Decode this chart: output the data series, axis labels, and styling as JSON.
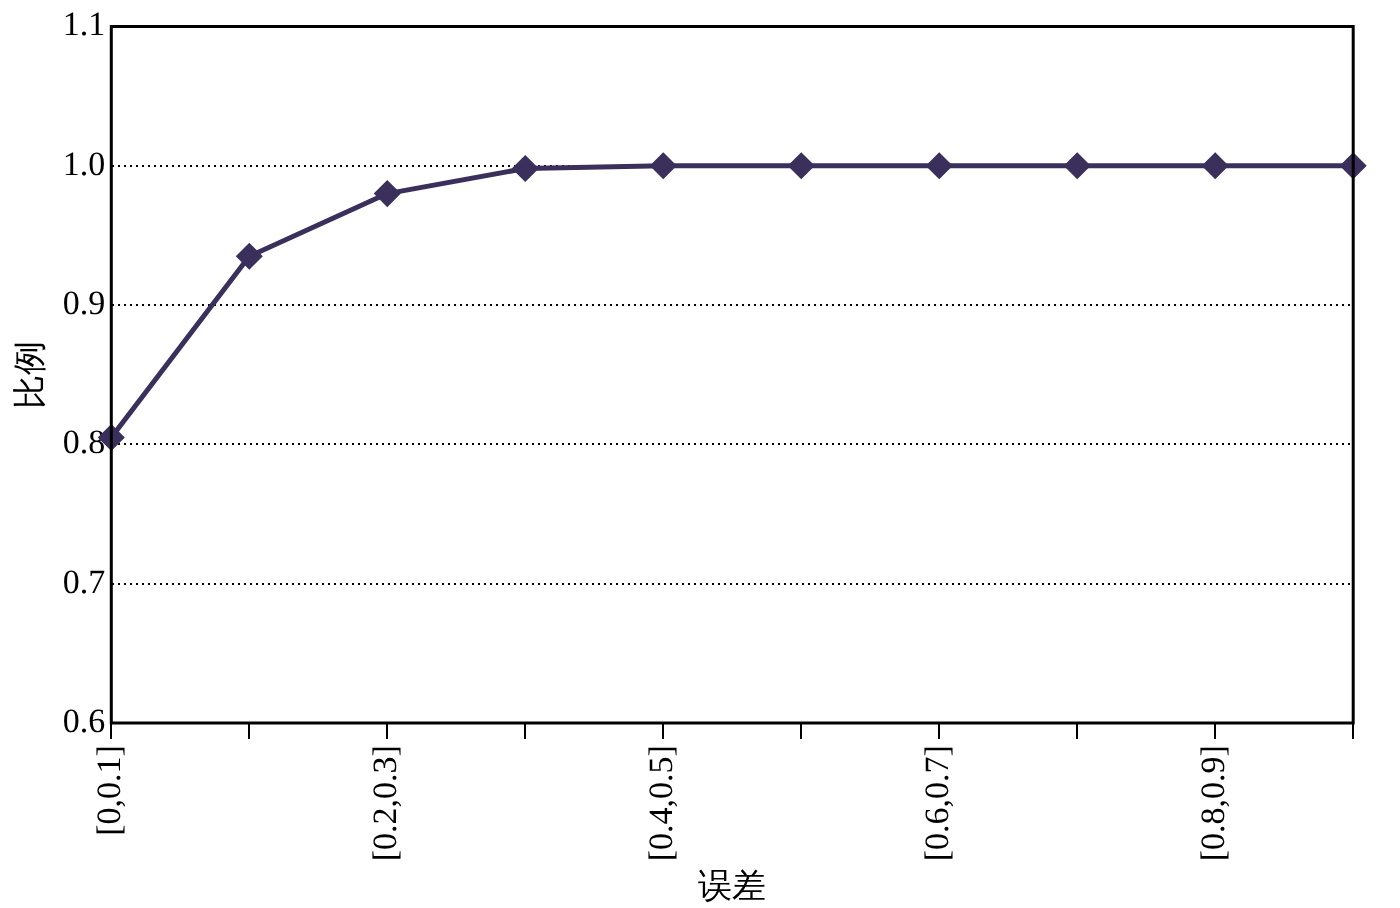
{
  "chart_data": {
    "type": "line",
    "xlabel": "误差",
    "ylabel": "比例",
    "categories": [
      "[0,0.1]",
      null,
      "[0.2,0.3]",
      null,
      "[0.4,0.5]",
      null,
      "[0.6,0.7]",
      null,
      "[0.8,0.9]",
      null
    ],
    "series": [
      {
        "color": "#3b2f5c",
        "values": [
          0.805,
          0.935,
          0.98,
          0.998,
          1.0,
          1.0,
          1.0,
          1.0,
          1.0,
          1.0
        ]
      }
    ],
    "ylim": [
      0.6,
      1.1
    ],
    "yticks": [
      0.6,
      0.7,
      0.8,
      0.9,
      {
        "value": 1,
        "label": "1.0"
      },
      1.1
    ],
    "grid": "y",
    "marker": "diamond",
    "line_style": "solid",
    "legend": false
  }
}
